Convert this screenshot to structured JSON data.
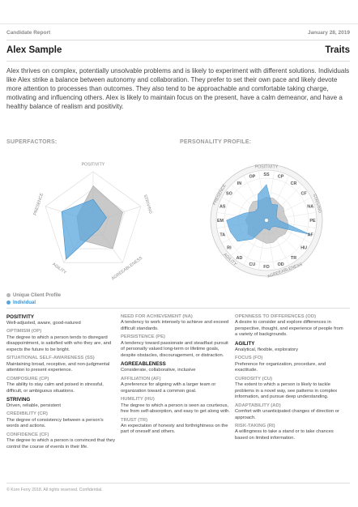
{
  "header": {
    "report_label": "Candidate Report",
    "date": "January 28, 2019",
    "candidate_name": "Alex Sample",
    "section_title": "Traits"
  },
  "summary": "Alex thrives on complex, potentially unsolvable problems and is likely to experiment with different solutions. Individuals like Alex strike a balance between autonomy and collaboration. They prefer to set their own pace and likely devote more attention to processes than outcomes. They also tend to be approachable and comfortable taking charge, motivating and influencing others. Alex is likely to maintain focus on the present, have a calm demeanor, and have a healthy balance of realism and positivity.",
  "superfactors": {
    "label": "SUPERFACTORS:",
    "axes": [
      "POSITIVITY",
      "STRIVING",
      "AGREEABLENESS",
      "AGILITY",
      "PRESENCE"
    ],
    "profile_values": [
      0.72,
      0.62,
      0.66,
      0.44,
      0.34
    ],
    "individual_values": [
      0.45,
      0.28,
      0.18,
      0.92,
      0.66
    ]
  },
  "personality": {
    "label": "PERSONALITY PROFILE:",
    "group_labels": [
      "POSITIVITY",
      "STRIVING",
      "AGREEABLENESS",
      "AGILITY",
      "PRESENCE"
    ],
    "codes": [
      "OP",
      "SS",
      "CP",
      "CR",
      "CF",
      "NA",
      "PE",
      "AF",
      "HU",
      "TR",
      "OD",
      "FO",
      "CU",
      "AD",
      "RI",
      "TA",
      "EM",
      "AS",
      "SO",
      "IN"
    ],
    "profile_values": [
      0.5,
      0.55,
      0.55,
      0.5,
      0.5,
      0.45,
      0.5,
      0.55,
      0.55,
      0.5,
      0.55,
      0.55,
      0.5,
      0.5,
      0.55,
      0.45,
      0.5,
      0.45,
      0.5,
      0.55
    ],
    "individual_values": [
      0.65,
      0.85,
      0.4,
      0.45,
      0.3,
      0.25,
      0.3,
      1.1,
      0.25,
      0.2,
      0.25,
      0.2,
      0.2,
      0.55,
      0.85,
      0.9,
      0.95,
      0.55,
      0.35,
      0.35
    ]
  },
  "legend": {
    "profile": "Unique Client Profile",
    "individual": "Individual"
  },
  "colors": {
    "profile": "#b7b7b7",
    "individual": "#5aa6dc",
    "individual_label": "#3d8fcf",
    "ring": "#c8c8c8"
  },
  "columns": [
    [
      {
        "term": "POSITIVITY",
        "kind": "major",
        "desc": "Well-adjusted, aware, good-natured"
      },
      {
        "term": "OPTIMISM (OP)",
        "kind": "minor",
        "desc": "The degree to which a person tends to disregard disappointment, is satisfied with who they are, and expects the future to be bright."
      },
      {
        "term": "SITUATIONAL SELF-AWARENESS (SS)",
        "kind": "minor",
        "desc": "Maintaining broad, receptive, and non-judgmental attention to present experience."
      },
      {
        "term": "COMPOSURE (CP)",
        "kind": "minor",
        "desc": "The ability to stay calm and poised in stressful, difficult, or ambiguous situations."
      },
      {
        "term": "STRIVING",
        "kind": "major",
        "desc": "Driven, reliable, persistent"
      },
      {
        "term": "CREDIBILITY (CR)",
        "kind": "minor",
        "desc": "The degree of consistency between a person's words and actions."
      },
      {
        "term": "CONFIDENCE (CF)",
        "kind": "minor",
        "desc": "The degree to which a person is convinced that they control the course of events in their life."
      }
    ],
    [
      {
        "term": "NEED FOR ACHIEVEMENT (NA)",
        "kind": "minor",
        "desc": "A tendency to work intensely to achieve and exceed difficult standards."
      },
      {
        "term": "PERSISTENCE (PE)",
        "kind": "minor",
        "desc": "A tendency toward passionate and steadfast pursuit of personally valued long-term or lifetime goals, despite obstacles, discouragement, or distraction."
      },
      {
        "term": "AGREEABLENESS",
        "kind": "major",
        "desc": "Considerate, collaborative, inclusive"
      },
      {
        "term": "AFFILIATION (AF)",
        "kind": "minor",
        "desc": "A preference for aligning with a larger team or organization toward a common goal."
      },
      {
        "term": "HUMILITY (HU)",
        "kind": "minor",
        "desc": "The degree to which a person is seen as courteous, free from self-absorption, and easy to get along with."
      },
      {
        "term": "TRUST (TR)",
        "kind": "minor",
        "desc": "An expectation of honesty and forthrightness on the part of oneself and others."
      }
    ],
    [
      {
        "term": "OPENNESS TO DIFFERENCES (OD)",
        "kind": "minor",
        "desc": "A desire to consider and explore differences in perspective, thought, and experience of people from a variety of backgrounds."
      },
      {
        "term": "AGILITY",
        "kind": "major",
        "desc": "Analytical, flexible, exploratory"
      },
      {
        "term": "FOCUS (FO)",
        "kind": "minor",
        "desc": "Preference for organization, procedure, and exactitude."
      },
      {
        "term": "CURIOSITY (CU)",
        "kind": "minor",
        "desc": "The extent to which a person is likely to tackle problems in a novel way, see patterns in complex information, and pursue deep understanding."
      },
      {
        "term": "ADAPTABILITY (AD)",
        "kind": "minor",
        "desc": "Comfort with unanticipated changes of direction or approach."
      },
      {
        "term": "RISK-TAKING (RI)",
        "kind": "minor",
        "desc": "A willingness to take a stand or to take chances based on limited information."
      }
    ]
  ],
  "footer": "© Korn Ferry 2018. All rights reserved. Confidential."
}
